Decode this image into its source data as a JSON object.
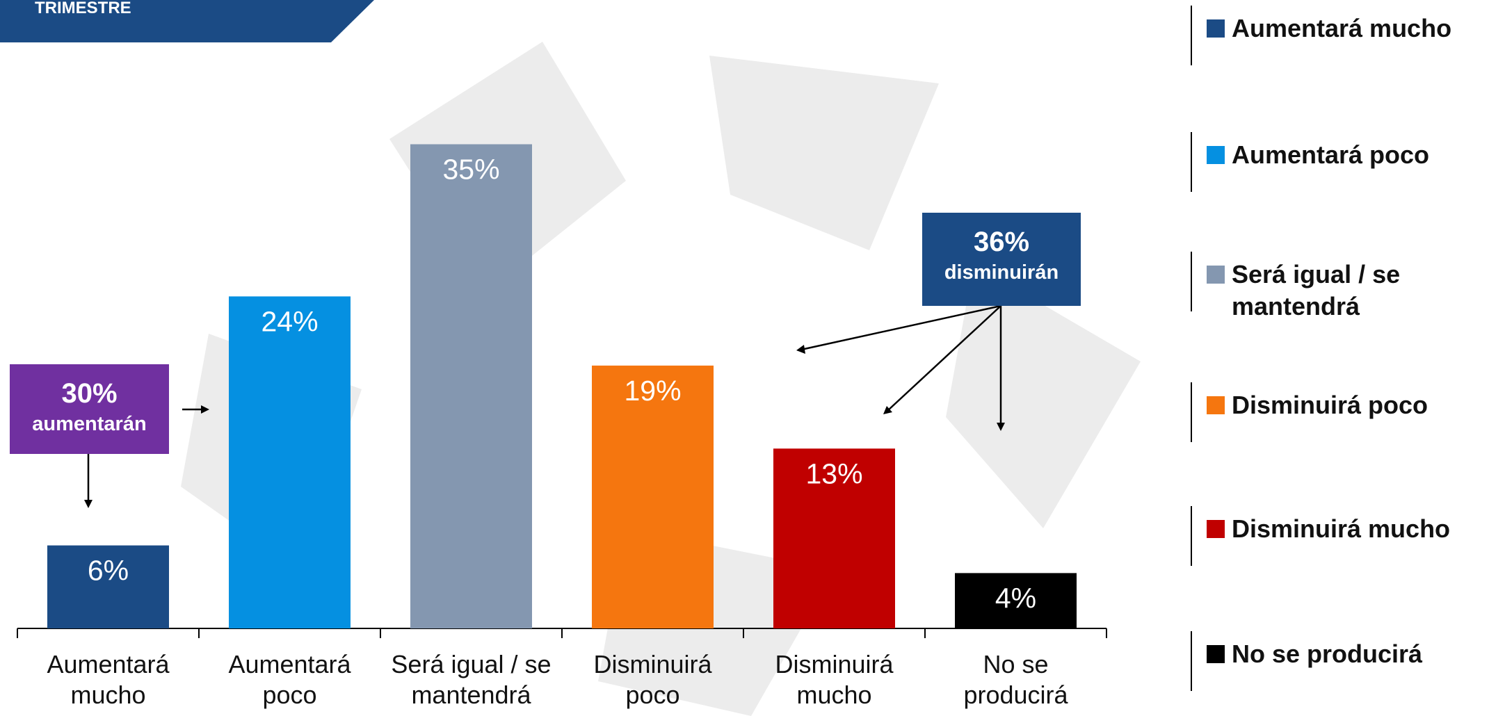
{
  "chart_data": {
    "type": "bar",
    "title": "TRIMESTRE",
    "categories": [
      "Aumentará mucho",
      "Aumentará poco",
      "Será igual / se mantendrá",
      "Disminuirá poco",
      "Disminuirá mucho",
      "No se producirá"
    ],
    "values": [
      6,
      24,
      35,
      19,
      13,
      4
    ],
    "value_labels": [
      "6%",
      "24%",
      "35%",
      "19%",
      "13%",
      "4%"
    ],
    "colors": [
      "#1b4b85",
      "#0590e1",
      "#8497b0",
      "#f5760f",
      "#c00000",
      "#000000"
    ],
    "annotations": [
      {
        "headline": "30%",
        "text": "aumentarán",
        "color": "#7030a0"
      },
      {
        "headline": "36%",
        "text": "disminuirán",
        "color": "#1b4b85"
      }
    ]
  }
}
